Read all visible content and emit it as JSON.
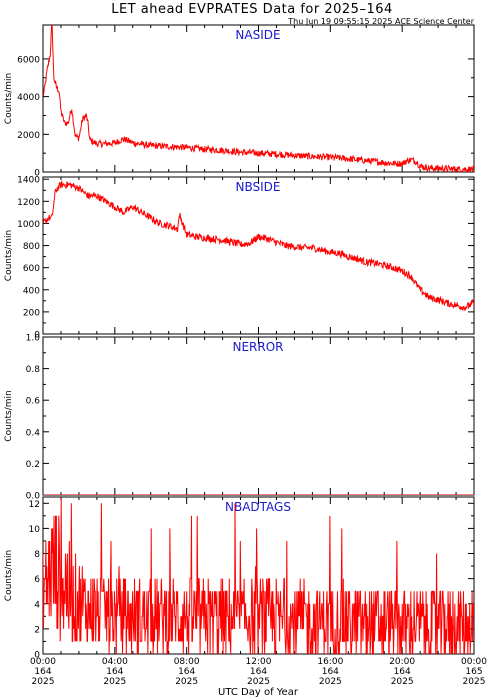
{
  "title": "LET ahead EVPRATES Data for 2025–164",
  "timestamp": "Thu Jun 19 09:55:15 2025 ACE Science Center",
  "xlabel": "UTC Day of Year",
  "colors": {
    "series": "#ff0000",
    "label": "#1a1acc",
    "axis": "#000000"
  },
  "x_ticks": [
    {
      "hour": 0,
      "time": "00:00",
      "day": "164",
      "year": "2025"
    },
    {
      "hour": 4,
      "time": "04:00",
      "day": "164",
      "year": "2025"
    },
    {
      "hour": 8,
      "time": "08:00",
      "day": "164",
      "year": "2025"
    },
    {
      "hour": 12,
      "time": "12:00",
      "day": "164",
      "year": "2025"
    },
    {
      "hour": 16,
      "time": "16:00",
      "day": "164",
      "year": "2025"
    },
    {
      "hour": 20,
      "time": "20:00",
      "day": "164",
      "year": "2025"
    },
    {
      "hour": 24,
      "time": "00:00",
      "day": "165",
      "year": "2025"
    }
  ],
  "chart_data": [
    {
      "type": "line",
      "name": "NASIDE",
      "ylabel": "Counts/min",
      "ylim": [
        0,
        7800
      ],
      "yticks": [
        0,
        2000,
        4000,
        6000
      ],
      "xlim": [
        0,
        24
      ],
      "x": [
        0,
        0.1,
        0.25,
        0.4,
        0.5,
        0.6,
        0.75,
        0.9,
        1.0,
        1.2,
        1.4,
        1.6,
        1.8,
        2.0,
        2.2,
        2.4,
        2.5,
        2.6,
        2.8,
        3.0,
        3.5,
        4.0,
        4.5,
        5,
        6,
        7,
        8,
        9,
        10,
        11,
        12,
        13,
        14,
        15,
        16,
        17,
        18,
        19,
        19.5,
        20,
        20.3,
        20.5,
        20.8,
        21,
        21.5,
        22,
        23,
        24
      ],
      "values": [
        4000,
        4500,
        5500,
        6200,
        8000,
        5000,
        4500,
        4300,
        3200,
        2600,
        2600,
        3400,
        1900,
        1800,
        2800,
        3000,
        2600,
        1700,
        1600,
        1500,
        1500,
        1550,
        1750,
        1550,
        1400,
        1350,
        1300,
        1200,
        1150,
        1050,
        1000,
        950,
        880,
        820,
        780,
        700,
        600,
        500,
        450,
        450,
        600,
        650,
        550,
        300,
        200,
        200,
        150,
        150
      ]
    },
    {
      "type": "line",
      "name": "NBSIDE",
      "ylabel": "Counts/min",
      "ylim": [
        0,
        1420
      ],
      "yticks": [
        0,
        200,
        400,
        600,
        800,
        1000,
        1200,
        1400
      ],
      "xlim": [
        0,
        24
      ],
      "x": [
        0,
        0.3,
        0.5,
        0.7,
        1.0,
        1.5,
        2.0,
        2.5,
        3.0,
        3.5,
        4.0,
        4.5,
        5.0,
        5.5,
        6.0,
        6.5,
        7.0,
        7.5,
        7.6,
        8.0,
        8.5,
        9.0,
        9.5,
        10.0,
        10.5,
        11.0,
        11.5,
        12.0,
        12.5,
        13.0,
        13.5,
        14.0,
        14.5,
        15.0,
        15.5,
        16.0,
        16.5,
        17.0,
        17.5,
        18.0,
        18.5,
        19.0,
        19.5,
        20.0,
        20.5,
        21.0,
        21.5,
        22.0,
        22.5,
        23.0,
        23.5,
        24.0
      ],
      "values": [
        1000,
        1050,
        1050,
        1300,
        1350,
        1350,
        1320,
        1250,
        1250,
        1200,
        1150,
        1100,
        1150,
        1100,
        1050,
        1000,
        980,
        950,
        1080,
        900,
        880,
        870,
        860,
        850,
        830,
        810,
        820,
        880,
        860,
        830,
        800,
        790,
        780,
        780,
        760,
        740,
        730,
        700,
        680,
        650,
        640,
        620,
        600,
        570,
        520,
        400,
        330,
        310,
        280,
        260,
        240,
        280
      ]
    },
    {
      "type": "line",
      "name": "NERROR",
      "ylabel": "Counts/min",
      "ylim": [
        0.0,
        1.0
      ],
      "yticks": [
        0.0,
        0.2,
        0.4,
        0.6,
        0.8,
        1.0
      ],
      "ytick_labels": [
        "0.0",
        "0.2",
        "0.4",
        "0.6",
        "0.8",
        "1.0"
      ],
      "xlim": [
        0,
        24
      ],
      "x": [
        0,
        24
      ],
      "values": [
        0,
        0
      ]
    },
    {
      "type": "line",
      "name": "NBADTAGS",
      "ylabel": "Counts/min",
      "ylim": [
        0,
        12.5
      ],
      "yticks": [
        0,
        2,
        4,
        6,
        8,
        10,
        12
      ],
      "xlim": [
        0,
        24
      ],
      "x": [
        0,
        0.5,
        1,
        1.5,
        2,
        3,
        4,
        6,
        8,
        10,
        12,
        14,
        16,
        18,
        20,
        22,
        24
      ],
      "values": [
        5,
        7,
        6,
        5,
        4,
        3.5,
        3,
        3,
        3,
        2.8,
        2.8,
        2.6,
        2.6,
        2.5,
        2.4,
        2.4,
        2.4
      ],
      "noise_amplitude": [
        3,
        5,
        5,
        4,
        3.5,
        3,
        3,
        3,
        3,
        3,
        3,
        3,
        3,
        3,
        3,
        3,
        3
      ]
    }
  ]
}
